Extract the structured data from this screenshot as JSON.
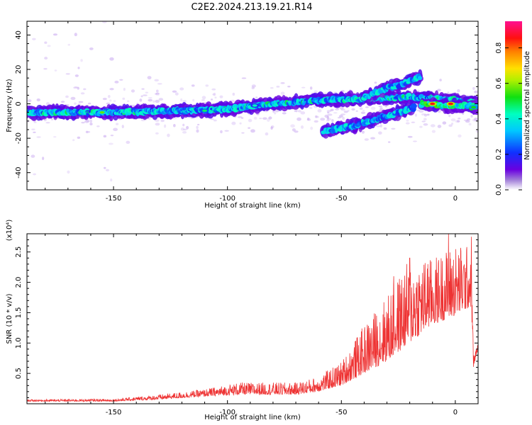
{
  "title": "C2E2.2024.213.19.21.R14",
  "colors": {
    "snr_line": "#ee3333",
    "frame": "#000000",
    "background": "#ffffff"
  },
  "chart_data": [
    {
      "type": "heatmap",
      "title": "C2E2.2024.213.19.21.R14",
      "xlabel": "Height of straight line (km)",
      "ylabel": "Frequency (Hz)",
      "xlim": [
        -188,
        10
      ],
      "ylim": [
        -50,
        48
      ],
      "x_ticks": [
        -150,
        -100,
        -50,
        0
      ],
      "x_tick_labels": [
        "-150",
        "-100",
        "-50",
        "0"
      ],
      "y_ticks": [
        -40,
        -20,
        0,
        20,
        40
      ],
      "y_tick_labels": [
        "-40",
        "-20",
        "0",
        "20",
        "40"
      ],
      "colorbar": {
        "label": "Normalized spectral amplitude",
        "range": [
          0.0,
          0.95
        ],
        "ticks": [
          0.0,
          0.2,
          0.4,
          0.6,
          0.8
        ],
        "tick_labels": [
          "0.0",
          "0.2",
          "0.4",
          "0.6",
          "0.8"
        ],
        "colormap": "rainbow (white-violet-blue-cyan-green-yellow-orange-red-magenta)"
      },
      "ridges": [
        {
          "name": "main",
          "points": [
            [
              -188,
              -5
            ],
            [
              -150,
              -5
            ],
            [
              -120,
              -4
            ],
            [
              -100,
              -3
            ],
            [
              -80,
              0
            ],
            [
              -60,
              2
            ],
            [
              -40,
              3
            ],
            [
              -20,
              4
            ],
            [
              -10,
              3
            ],
            [
              0,
              2
            ],
            [
              10,
              0
            ]
          ]
        },
        {
          "name": "upper-branch",
          "points": [
            [
              -40,
              4
            ],
            [
              -30,
              9
            ],
            [
              -22,
              12
            ],
            [
              -15,
              16
            ]
          ]
        },
        {
          "name": "lower-branch",
          "points": [
            [
              -58,
              -16
            ],
            [
              -45,
              -13
            ],
            [
              -35,
              -9
            ],
            [
              -25,
              -5
            ],
            [
              -18,
              -2
            ]
          ]
        },
        {
          "name": "near-zero",
          "points": [
            [
              -15,
              0
            ],
            [
              -5,
              -1
            ],
            [
              5,
              -1
            ],
            [
              10,
              -2
            ]
          ]
        }
      ],
      "hotspots": [
        {
          "x": -10,
          "y": 0,
          "value": 0.9
        },
        {
          "x": -2,
          "y": 0,
          "value": 0.9
        },
        {
          "x": -155,
          "y": -5,
          "value": 0.6
        },
        {
          "x": -110,
          "y": -4,
          "value": 0.5
        },
        {
          "x": -88,
          "y": -1,
          "value": 0.45
        },
        {
          "x": 8,
          "y": -2,
          "value": 0.55
        }
      ]
    },
    {
      "type": "line",
      "xlabel": "Height of straight line (km)",
      "ylabel": "SNR (10 * v/v)",
      "multiplier_label": "(x10⁴)",
      "xlim": [
        -188,
        10
      ],
      "ylim": [
        0,
        2.8
      ],
      "x_ticks": [
        -150,
        -100,
        -50,
        0
      ],
      "x_tick_labels": [
        "-150",
        "-100",
        "-50",
        "0"
      ],
      "y_ticks": [
        0.5,
        1.0,
        1.5,
        2.0,
        2.5
      ],
      "y_tick_labels": [
        "0.5",
        "1.0",
        "1.5",
        "2.0",
        "2.5"
      ],
      "envelope": [
        {
          "x": -188,
          "base": 0.04,
          "spread": 0.03
        },
        {
          "x": -150,
          "base": 0.04,
          "spread": 0.04
        },
        {
          "x": -130,
          "base": 0.07,
          "spread": 0.08
        },
        {
          "x": -110,
          "base": 0.12,
          "spread": 0.12
        },
        {
          "x": -95,
          "base": 0.15,
          "spread": 0.2
        },
        {
          "x": -70,
          "base": 0.15,
          "spread": 0.2
        },
        {
          "x": -60,
          "base": 0.2,
          "spread": 0.25
        },
        {
          "x": -50,
          "base": 0.3,
          "spread": 0.4
        },
        {
          "x": -40,
          "base": 0.5,
          "spread": 0.8
        },
        {
          "x": -30,
          "base": 0.7,
          "spread": 1.1
        },
        {
          "x": -20,
          "base": 1.0,
          "spread": 1.4
        },
        {
          "x": -10,
          "base": 1.3,
          "spread": 1.1
        },
        {
          "x": 0,
          "base": 1.45,
          "spread": 1.2
        },
        {
          "x": 7,
          "base": 1.6,
          "spread": 1.0
        },
        {
          "x": 8,
          "base": 0.6,
          "spread": 0.2
        },
        {
          "x": 10,
          "base": 0.9,
          "spread": 0.1
        }
      ],
      "peaks": [
        {
          "x": -3,
          "y": 2.8
        },
        {
          "x": 7,
          "y": 2.75
        },
        {
          "x": -20,
          "y": 2.4
        },
        {
          "x": -12,
          "y": 2.3
        },
        {
          "x": -27,
          "y": 2.1
        }
      ]
    }
  ]
}
